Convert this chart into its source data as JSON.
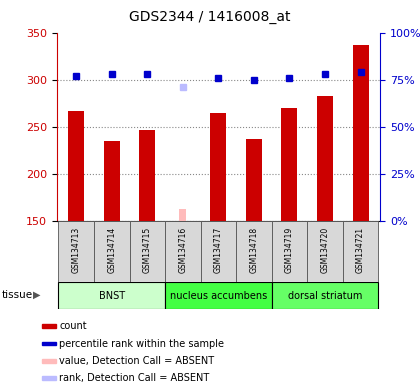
{
  "title": "GDS2344 / 1416008_at",
  "samples": [
    "GSM134713",
    "GSM134714",
    "GSM134715",
    "GSM134716",
    "GSM134717",
    "GSM134718",
    "GSM134719",
    "GSM134720",
    "GSM134721"
  ],
  "bar_values": [
    267,
    235,
    246,
    null,
    265,
    237,
    270,
    283,
    337
  ],
  "absent_bar_values": [
    null,
    null,
    null,
    163,
    null,
    null,
    null,
    null,
    null
  ],
  "rank_values": [
    77,
    78,
    78,
    null,
    76,
    75,
    76,
    78,
    79
  ],
  "absent_rank_values": [
    null,
    null,
    null,
    71,
    null,
    null,
    null,
    null,
    null
  ],
  "ylim_left": [
    150,
    350
  ],
  "ylim_right": [
    0,
    100
  ],
  "yticks_left": [
    150,
    200,
    250,
    300,
    350
  ],
  "yticks_right": [
    0,
    25,
    50,
    75,
    100
  ],
  "yticklabels_right": [
    "0%",
    "25%",
    "50%",
    "75%",
    "100%"
  ],
  "bar_color": "#cc0000",
  "absent_bar_color": "#ffbbbb",
  "rank_color": "#0000cc",
  "absent_rank_color": "#bbbbff",
  "tissue_groups": [
    {
      "label": "BNST",
      "start": 0,
      "end": 3,
      "color": "#ccffcc"
    },
    {
      "label": "nucleus accumbens",
      "start": 3,
      "end": 6,
      "color": "#44ff44"
    },
    {
      "label": "dorsal striatum",
      "start": 6,
      "end": 9,
      "color": "#66ff66"
    }
  ],
  "tissue_label": "tissue",
  "legend_items": [
    {
      "color": "#cc0000",
      "label": "count"
    },
    {
      "color": "#0000cc",
      "label": "percentile rank within the sample"
    },
    {
      "color": "#ffbbbb",
      "label": "value, Detection Call = ABSENT"
    },
    {
      "color": "#bbbbff",
      "label": "rank, Detection Call = ABSENT"
    }
  ],
  "grid_color": "#888888",
  "bar_width": 0.45,
  "absent_bar_width": 0.2,
  "rank_marker_size": 5
}
